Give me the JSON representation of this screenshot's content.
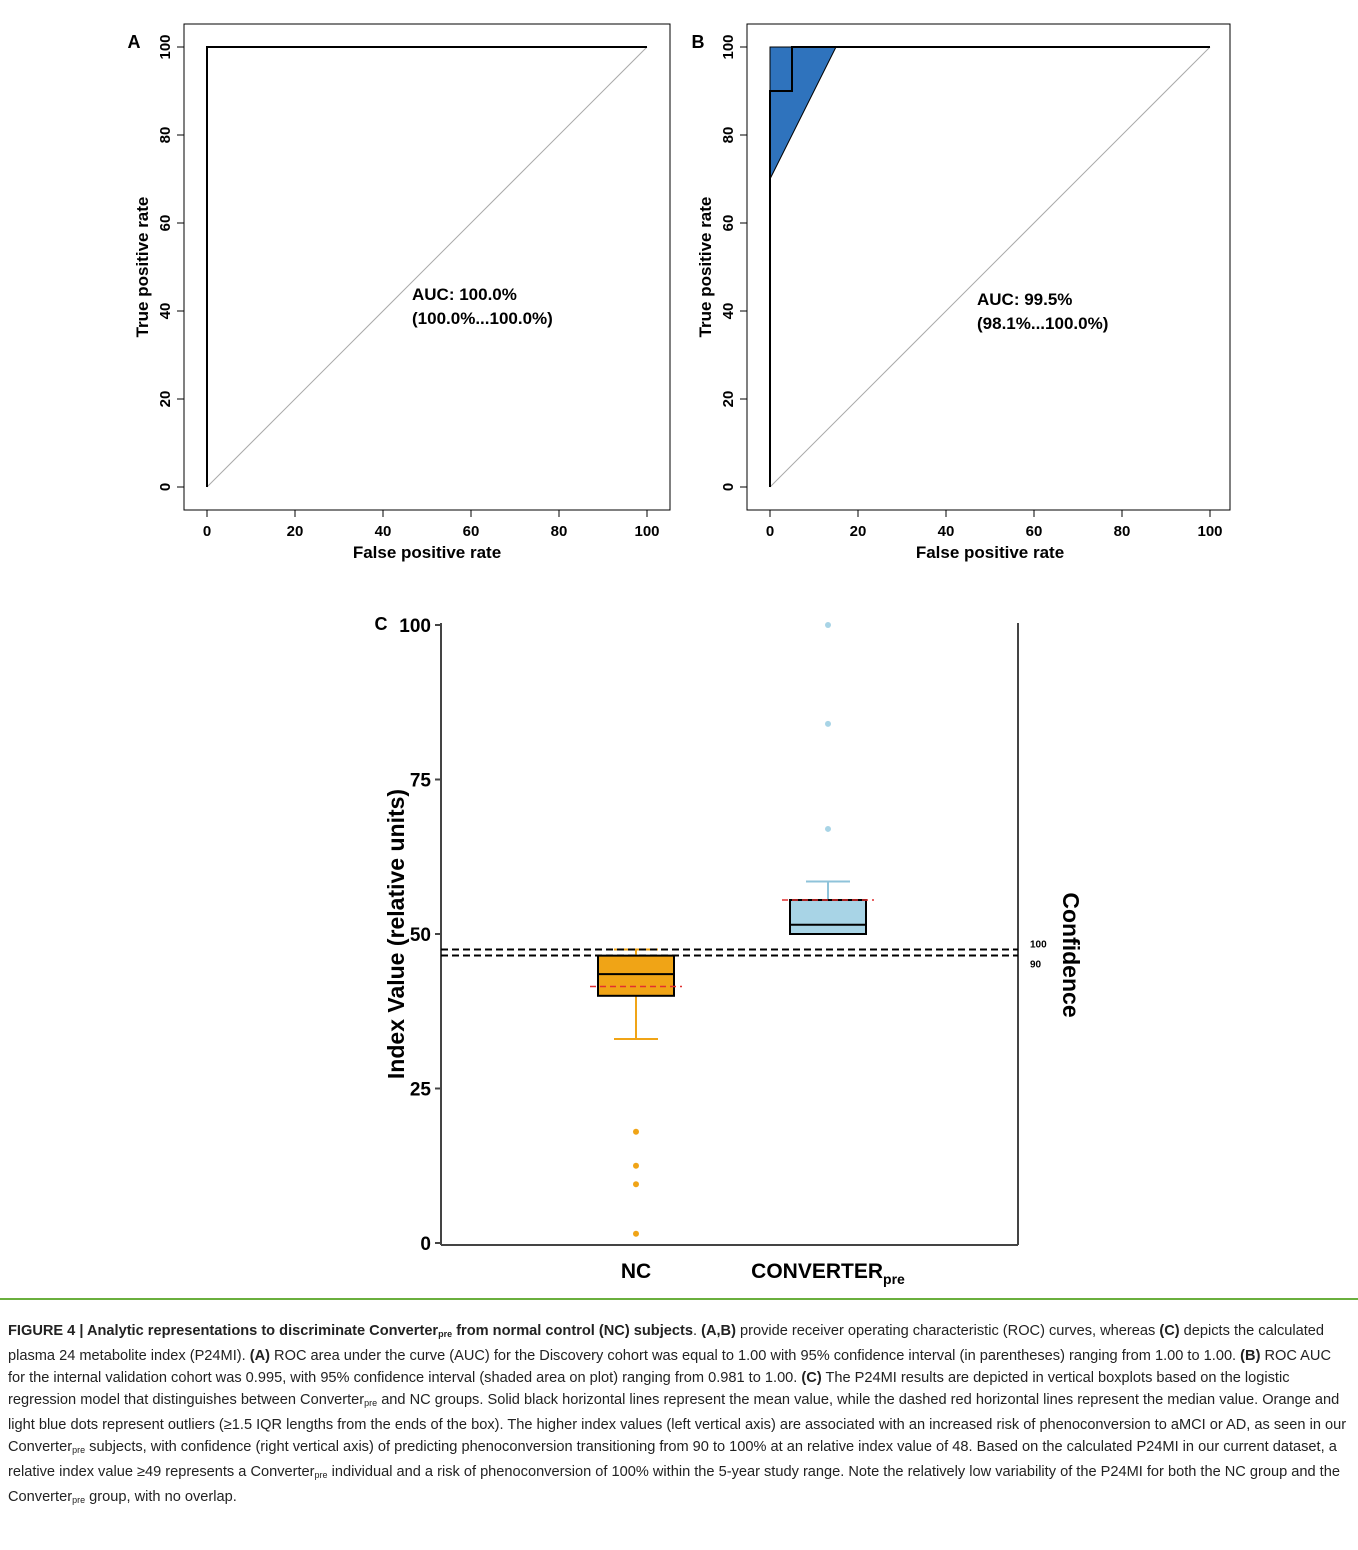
{
  "chart_data": [
    {
      "type": "line",
      "panel_label": "A",
      "xlabel": "False positive rate",
      "ylabel": "True positive rate",
      "xlim": [
        0,
        100
      ],
      "ylim": [
        0,
        100
      ],
      "xticks": [
        "0",
        "20",
        "40",
        "60",
        "80",
        "100"
      ],
      "yticks": [
        "0",
        "20",
        "40",
        "60",
        "80",
        "100"
      ],
      "series": [
        {
          "x": [
            0,
            0,
            100
          ],
          "y": [
            0,
            100,
            100
          ]
        }
      ],
      "diagonal": true,
      "annotation": [
        "AUC: 100.0%",
        "(100.0%...100.0%)"
      ]
    },
    {
      "type": "line",
      "panel_label": "B",
      "xlabel": "False positive rate",
      "ylabel": "True positive rate",
      "xlim": [
        0,
        100
      ],
      "ylim": [
        0,
        100
      ],
      "xticks": [
        "0",
        "20",
        "40",
        "60",
        "80",
        "100"
      ],
      "yticks": [
        "0",
        "20",
        "40",
        "60",
        "80",
        "100"
      ],
      "series": [
        {
          "x": [
            0,
            0,
            5,
            5,
            100
          ],
          "y": [
            0,
            90,
            90,
            100,
            100
          ]
        }
      ],
      "ci_band": {
        "x": [
          0,
          0,
          15,
          0
        ],
        "y": [
          70,
          100,
          100,
          70
        ],
        "color": "#2f73bd"
      },
      "diagonal": true,
      "annotation": [
        "AUC: 99.5%",
        "(98.1%...100.0%)"
      ]
    },
    {
      "type": "box",
      "panel_label": "C",
      "ylabel": "Index Value (relative units)",
      "right_label": "Confidence",
      "ylim": [
        0,
        100
      ],
      "yticks": [
        "0",
        "25",
        "50",
        "75",
        "100"
      ],
      "categories": [
        "NC",
        "CONVERTER"
      ],
      "category_sub": [
        "",
        "pre"
      ],
      "boxes": [
        {
          "name": "NC",
          "q1": 40,
          "q3": 46.5,
          "mean": 43.5,
          "median": 41.5,
          "whisker_low": 33,
          "whisker_high": 47.5,
          "outliers": [
            18,
            12.5,
            9.5,
            1.5
          ],
          "color": "#f0a416"
        },
        {
          "name": "CONVERTER",
          "q1": 50,
          "q3": 55.5,
          "mean": 51.5,
          "median": 55.5,
          "whisker_low": 50,
          "whisker_high": 58.5,
          "outliers": [
            67,
            84,
            100
          ],
          "color": "#a8d4e6"
        }
      ],
      "confidence_lines": [
        {
          "label": "100",
          "value": 47.5
        },
        {
          "label": "90",
          "value": 47
        }
      ]
    }
  ],
  "caption": {
    "title": "FIGURE 4 | Analytic representations to discriminate Converter",
    "title_sub": "pre",
    "title_end": " from normal control (NC) subjects",
    "title_dot": ". ",
    "ab": "(A,B)",
    "t1": " provide receiver operating characteristic (ROC) curves, whereas ",
    "c1": "(C)",
    "t2": " depicts the calculated plasma 24 metabolite index (P24MI). ",
    "a": "(A)",
    "t3": " ROC area under the curve (AUC) for the Discovery cohort was equal to 1.00 with 95% confidence interval (in parentheses) ranging from 1.00 to 1.00. ",
    "b": "(B)",
    "t4": " ROC AUC for the internal validation cohort was 0.995, with 95% confidence interval (shaded area on plot) ranging from 0.981 to 1.00. ",
    "c2": "(C)",
    "t5": " The P24MI results are depicted in vertical boxplots based on the logistic regression model that distinguishes between Converter",
    "s1": "pre",
    "t6": " and NC groups. Solid black horizontal lines represent the mean value, while the dashed red horizontal lines represent the median value. Orange and light blue dots represent outliers (≥1.5 IQR lengths from the ends of the box). The higher index values (left vertical axis) are associated with an increased risk of phenoconversion to aMCI or AD, as seen in our Converter",
    "s2": "pre",
    "t7": " subjects, with confidence (right vertical axis) of predicting phenoconversion transitioning from 90 to 100% at an relative index value of 48. Based on the calculated P24MI in our current dataset, a relative index value ≥49 represents a Converter",
    "s3": "pre",
    "t8": " individual and a risk of phenoconversion of 100% within the 5-year study range. Note the relatively low variability of the P24MI for both the NC group and the Converter",
    "s4": "pre",
    "t9": " group, with no overlap."
  }
}
